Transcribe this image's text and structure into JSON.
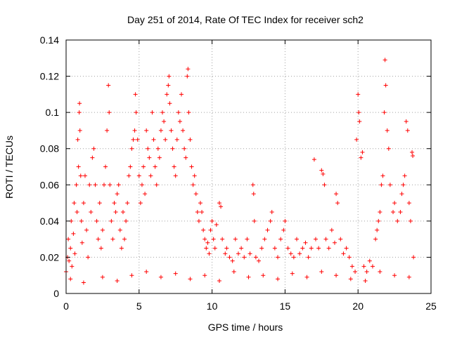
{
  "chart_data": {
    "type": "scatter",
    "title": "Day 251 of 2014, Rate Of TEC Index for receiver sch2",
    "xlabel": "GPS time / hours",
    "ylabel": "ROTI / TECUs",
    "xlim": [
      0,
      25
    ],
    "ylim": [
      0,
      0.14
    ],
    "xticks": [
      0,
      5,
      10,
      15,
      20,
      25
    ],
    "xtick_labels": [
      "0",
      "5",
      "10",
      "15",
      "20",
      "25"
    ],
    "yticks": [
      0,
      0.02,
      0.04,
      0.06,
      0.08,
      0.1,
      0.12,
      0.14
    ],
    "ytick_labels": [
      "0",
      "0.02",
      "0.04",
      "0.06",
      "0.08",
      "0.1",
      "0.12",
      "0.14"
    ],
    "grid": true,
    "marker": "+",
    "colors": {
      "series": "#ff0000",
      "grid": "#a0a0a0",
      "axis": "#000000"
    },
    "series": [
      {
        "name": "ROTI",
        "note": "Dense cluster of '+' markers; representative points read from the plot.",
        "points": [
          [
            0.0,
            0.012
          ],
          [
            0.1,
            0.02
          ],
          [
            0.15,
            0.03
          ],
          [
            0.2,
            0.018
          ],
          [
            0.3,
            0.025
          ],
          [
            0.35,
            0.04
          ],
          [
            0.4,
            0.015
          ],
          [
            0.5,
            0.033
          ],
          [
            0.55,
            0.05
          ],
          [
            0.6,
            0.022
          ],
          [
            0.7,
            0.06
          ],
          [
            0.75,
            0.045
          ],
          [
            0.8,
            0.085
          ],
          [
            0.85,
            0.07
          ],
          [
            0.9,
            0.1
          ],
          [
            0.92,
            0.105
          ],
          [
            0.95,
            0.09
          ],
          [
            1.0,
            0.065
          ],
          [
            1.05,
            0.04
          ],
          [
            1.1,
            0.028
          ],
          [
            1.2,
            0.05
          ],
          [
            1.3,
            0.065
          ],
          [
            1.4,
            0.035
          ],
          [
            1.5,
            0.02
          ],
          [
            1.6,
            0.06
          ],
          [
            1.7,
            0.045
          ],
          [
            1.8,
            0.075
          ],
          [
            1.9,
            0.08
          ],
          [
            2.0,
            0.06
          ],
          [
            2.1,
            0.04
          ],
          [
            2.2,
            0.03
          ],
          [
            2.3,
            0.05
          ],
          [
            2.4,
            0.025
          ],
          [
            2.5,
            0.035
          ],
          [
            2.6,
            0.06
          ],
          [
            2.7,
            0.07
          ],
          [
            2.8,
            0.09
          ],
          [
            2.9,
            0.115
          ],
          [
            2.95,
            0.1
          ],
          [
            3.0,
            0.06
          ],
          [
            3.1,
            0.04
          ],
          [
            3.2,
            0.03
          ],
          [
            3.3,
            0.05
          ],
          [
            3.4,
            0.045
          ],
          [
            3.5,
            0.055
          ],
          [
            3.6,
            0.06
          ],
          [
            3.7,
            0.035
          ],
          [
            3.8,
            0.025
          ],
          [
            3.9,
            0.045
          ],
          [
            4.0,
            0.03
          ],
          [
            4.1,
            0.04
          ],
          [
            4.2,
            0.05
          ],
          [
            4.3,
            0.065
          ],
          [
            4.4,
            0.07
          ],
          [
            4.5,
            0.08
          ],
          [
            4.6,
            0.085
          ],
          [
            4.7,
            0.09
          ],
          [
            4.75,
            0.11
          ],
          [
            4.8,
            0.1
          ],
          [
            4.9,
            0.085
          ],
          [
            5.0,
            0.065
          ],
          [
            5.1,
            0.05
          ],
          [
            5.2,
            0.06
          ],
          [
            5.3,
            0.07
          ],
          [
            5.4,
            0.055
          ],
          [
            5.5,
            0.09
          ],
          [
            5.6,
            0.08
          ],
          [
            5.7,
            0.075
          ],
          [
            5.8,
            0.065
          ],
          [
            5.9,
            0.1
          ],
          [
            6.0,
            0.085
          ],
          [
            6.1,
            0.07
          ],
          [
            6.2,
            0.06
          ],
          [
            6.3,
            0.08
          ],
          [
            6.4,
            0.075
          ],
          [
            6.5,
            0.09
          ],
          [
            6.6,
            0.1
          ],
          [
            6.7,
            0.095
          ],
          [
            6.8,
            0.085
          ],
          [
            6.9,
            0.11
          ],
          [
            7.0,
            0.115
          ],
          [
            7.05,
            0.12
          ],
          [
            7.1,
            0.105
          ],
          [
            7.2,
            0.09
          ],
          [
            7.3,
            0.08
          ],
          [
            7.4,
            0.07
          ],
          [
            7.5,
            0.065
          ],
          [
            7.6,
            0.085
          ],
          [
            7.7,
            0.1
          ],
          [
            7.8,
            0.095
          ],
          [
            7.9,
            0.11
          ],
          [
            8.0,
            0.09
          ],
          [
            8.1,
            0.08
          ],
          [
            8.2,
            0.075
          ],
          [
            8.3,
            0.12
          ],
          [
            8.35,
            0.124
          ],
          [
            8.4,
            0.1
          ],
          [
            8.5,
            0.085
          ],
          [
            8.6,
            0.07
          ],
          [
            8.7,
            0.06
          ],
          [
            8.8,
            0.065
          ],
          [
            8.9,
            0.055
          ],
          [
            9.0,
            0.045
          ],
          [
            9.1,
            0.04
          ],
          [
            9.2,
            0.05
          ],
          [
            9.3,
            0.045
          ],
          [
            9.4,
            0.035
          ],
          [
            9.5,
            0.03
          ],
          [
            9.6,
            0.025
          ],
          [
            9.7,
            0.028
          ],
          [
            9.8,
            0.022
          ],
          [
            9.9,
            0.035
          ],
          [
            10.0,
            0.04
          ],
          [
            10.1,
            0.03
          ],
          [
            10.2,
            0.025
          ],
          [
            10.3,
            0.038
          ],
          [
            10.5,
            0.05
          ],
          [
            10.6,
            0.048
          ],
          [
            10.7,
            0.03
          ],
          [
            10.9,
            0.022
          ],
          [
            11.0,
            0.025
          ],
          [
            11.2,
            0.02
          ],
          [
            11.4,
            0.018
          ],
          [
            11.6,
            0.03
          ],
          [
            11.8,
            0.022
          ],
          [
            12.0,
            0.025
          ],
          [
            12.2,
            0.02
          ],
          [
            12.4,
            0.03
          ],
          [
            12.6,
            0.022
          ],
          [
            12.8,
            0.06
          ],
          [
            12.85,
            0.055
          ],
          [
            12.9,
            0.04
          ],
          [
            13.0,
            0.02
          ],
          [
            13.2,
            0.018
          ],
          [
            13.4,
            0.025
          ],
          [
            13.6,
            0.03
          ],
          [
            13.8,
            0.035
          ],
          [
            14.0,
            0.04
          ],
          [
            14.1,
            0.045
          ],
          [
            14.3,
            0.025
          ],
          [
            14.5,
            0.02
          ],
          [
            14.7,
            0.03
          ],
          [
            14.9,
            0.035
          ],
          [
            15.0,
            0.04
          ],
          [
            15.2,
            0.025
          ],
          [
            15.4,
            0.022
          ],
          [
            15.6,
            0.02
          ],
          [
            15.8,
            0.03
          ],
          [
            16.0,
            0.022
          ],
          [
            16.2,
            0.025
          ],
          [
            16.4,
            0.028
          ],
          [
            16.6,
            0.02
          ],
          [
            16.8,
            0.025
          ],
          [
            17.0,
            0.074
          ],
          [
            17.1,
            0.03
          ],
          [
            17.3,
            0.025
          ],
          [
            17.5,
            0.068
          ],
          [
            17.6,
            0.066
          ],
          [
            17.7,
            0.06
          ],
          [
            17.8,
            0.03
          ],
          [
            18.0,
            0.025
          ],
          [
            18.2,
            0.035
          ],
          [
            18.4,
            0.028
          ],
          [
            18.5,
            0.055
          ],
          [
            18.6,
            0.05
          ],
          [
            18.8,
            0.03
          ],
          [
            19.0,
            0.022
          ],
          [
            19.2,
            0.025
          ],
          [
            19.4,
            0.02
          ],
          [
            19.6,
            0.015
          ],
          [
            19.8,
            0.012
          ],
          [
            19.9,
            0.085
          ],
          [
            20.0,
            0.11
          ],
          [
            20.05,
            0.1
          ],
          [
            20.1,
            0.095
          ],
          [
            20.2,
            0.075
          ],
          [
            20.3,
            0.078
          ],
          [
            20.4,
            0.015
          ],
          [
            20.6,
            0.012
          ],
          [
            20.8,
            0.018
          ],
          [
            21.0,
            0.015
          ],
          [
            21.2,
            0.03
          ],
          [
            21.3,
            0.035
          ],
          [
            21.4,
            0.04
          ],
          [
            21.5,
            0.045
          ],
          [
            21.6,
            0.06
          ],
          [
            21.7,
            0.065
          ],
          [
            21.8,
            0.1
          ],
          [
            21.85,
            0.129
          ],
          [
            21.9,
            0.115
          ],
          [
            22.0,
            0.09
          ],
          [
            22.1,
            0.08
          ],
          [
            22.2,
            0.06
          ],
          [
            22.4,
            0.045
          ],
          [
            22.5,
            0.05
          ],
          [
            22.7,
            0.04
          ],
          [
            22.9,
            0.045
          ],
          [
            23.0,
            0.055
          ],
          [
            23.1,
            0.06
          ],
          [
            23.2,
            0.065
          ],
          [
            23.3,
            0.095
          ],
          [
            23.4,
            0.09
          ],
          [
            23.5,
            0.05
          ],
          [
            23.6,
            0.04
          ],
          [
            23.7,
            0.078
          ],
          [
            23.75,
            0.076
          ],
          [
            23.8,
            0.02
          ],
          [
            0.3,
            0.008
          ],
          [
            1.2,
            0.006
          ],
          [
            2.5,
            0.009
          ],
          [
            3.5,
            0.007
          ],
          [
            4.5,
            0.01
          ],
          [
            5.5,
            0.012
          ],
          [
            6.5,
            0.009
          ],
          [
            7.5,
            0.011
          ],
          [
            8.5,
            0.008
          ],
          [
            9.5,
            0.01
          ],
          [
            10.5,
            0.007
          ],
          [
            11.5,
            0.012
          ],
          [
            12.5,
            0.009
          ],
          [
            13.5,
            0.01
          ],
          [
            14.5,
            0.008
          ],
          [
            15.5,
            0.011
          ],
          [
            16.5,
            0.009
          ],
          [
            17.5,
            0.012
          ],
          [
            18.5,
            0.01
          ],
          [
            19.5,
            0.008
          ],
          [
            20.5,
            0.007
          ],
          [
            21.5,
            0.012
          ],
          [
            22.5,
            0.01
          ],
          [
            23.5,
            0.009
          ]
        ]
      }
    ]
  }
}
